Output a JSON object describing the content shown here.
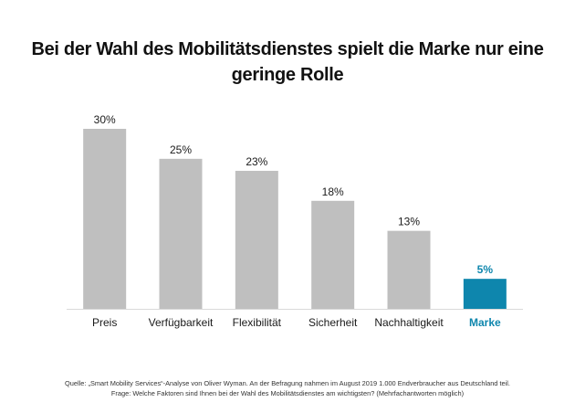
{
  "chart_data": {
    "type": "bar",
    "title": "Bei der Wahl des Mobilitätsdienstes spielt die Marke nur eine geringe Rolle",
    "categories": [
      "Preis",
      "Verfügbarkeit",
      "Flexibilität",
      "Sicherheit",
      "Nachhaltigkeit",
      "Marke"
    ],
    "values": [
      30,
      25,
      23,
      18,
      13,
      5
    ],
    "data_labels": [
      "30%",
      "25%",
      "23%",
      "18%",
      "13%",
      "5%"
    ],
    "unit": "%",
    "highlight_category": "Marke",
    "colors": {
      "default": "#bfbfbf",
      "highlight": "#0e86ad",
      "axis": "#d9d9d9",
      "text": "#1a1a1a"
    },
    "xlabel": "",
    "ylabel": "",
    "ylim": [
      0,
      30
    ],
    "grid": false,
    "legend": "none"
  },
  "footer": {
    "source": "Quelle: „Smart Mobility Services“-Analyse von Oliver Wyman. An der Befragung nahmen im August 2019 1.000 Endverbraucher aus Deutschland teil.",
    "question": "Frage: Welche Faktoren sind Ihnen bei der Wahl des Mobilitätsdienstes am wichtigsten? (Mehrfachantworten möglich)"
  }
}
